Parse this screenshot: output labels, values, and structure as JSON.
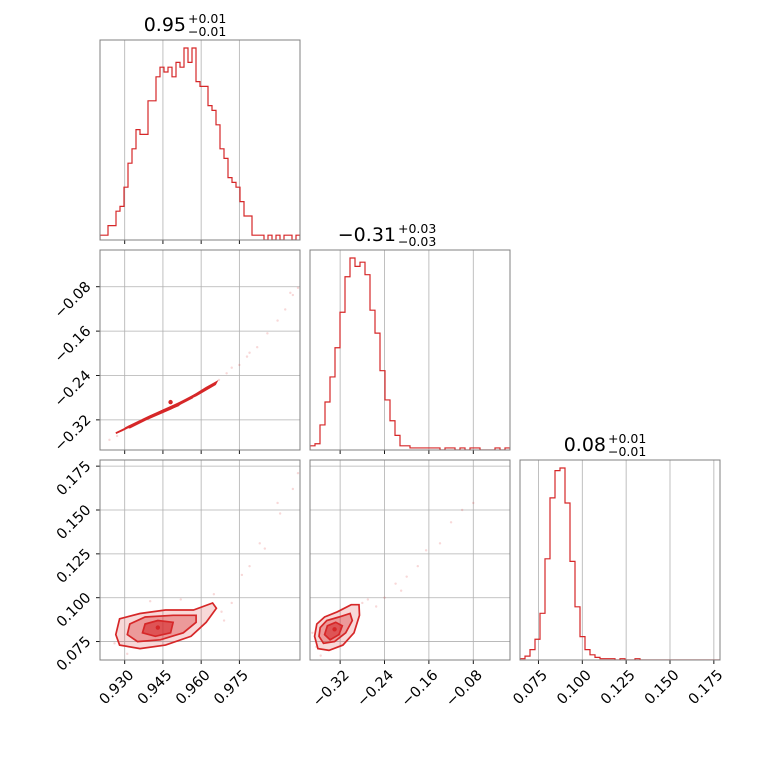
{
  "figure": {
    "color": "#d62728"
  },
  "params": [
    {
      "id": "p0",
      "title": {
        "value": "0.95",
        "plus": "+0.01",
        "minus": "−0.01"
      },
      "range": [
        0.9203,
        0.9988
      ],
      "ticks": [
        0.93,
        0.945,
        0.96,
        0.975
      ],
      "tick_labels": [
        "0.930",
        "0.945",
        "0.960",
        "0.975"
      ]
    },
    {
      "id": "p1",
      "title": {
        "value": "−0.31",
        "plus": "+0.03",
        "minus": "−0.03"
      },
      "range": [
        -0.3743,
        -0.0138
      ],
      "ticks": [
        -0.32,
        -0.24,
        -0.16,
        -0.08
      ],
      "tick_labels": [
        "−0.32",
        "−0.24",
        "−0.16",
        "−0.08"
      ]
    },
    {
      "id": "p2",
      "title": {
        "value": "0.08",
        "plus": "+0.01",
        "minus": "−0.01"
      },
      "range": [
        0.0645,
        0.1785
      ],
      "ticks": [
        0.075,
        0.1,
        0.125,
        0.15,
        0.175
      ],
      "tick_labels": [
        "0.075",
        "0.100",
        "0.125",
        "0.150",
        "0.175"
      ]
    }
  ],
  "chart_data": {
    "type": "corner",
    "parameters": [
      "p0",
      "p1",
      "p2"
    ],
    "histograms": [
      {
        "param": "p0",
        "bin_edges": [
          0.9203,
          0.9988
        ],
        "counts": [
          1,
          1,
          3,
          3,
          6,
          7,
          11,
          16,
          19,
          23,
          22,
          22,
          29,
          29,
          34,
          36,
          35,
          36,
          34,
          37,
          36,
          40,
          37,
          40,
          33,
          32,
          32,
          28,
          27,
          24,
          19,
          17,
          13,
          12,
          11,
          8,
          5,
          5,
          1,
          1,
          1,
          0,
          1,
          0,
          1,
          0,
          1,
          1,
          0,
          1
        ]
      },
      {
        "param": "p1",
        "bin_edges": [
          -0.3743,
          -0.0138
        ],
        "counts": [
          2,
          3,
          12,
          23,
          35,
          49,
          66,
          83,
          92,
          88,
          90,
          84,
          67,
          56,
          38,
          24,
          14,
          7,
          2,
          2,
          1,
          1,
          1,
          1,
          1,
          1,
          0,
          1,
          1,
          0,
          1,
          0,
          1,
          1,
          0,
          0,
          0,
          1,
          0,
          1
        ]
      },
      {
        "param": "p2",
        "bin_edges": [
          0.0645,
          0.1785
        ],
        "counts": [
          1,
          3,
          8,
          16,
          36,
          78,
          125,
          146,
          148,
          121,
          76,
          41,
          18,
          8,
          4,
          2,
          1,
          1,
          1,
          0,
          1,
          0,
          0,
          1,
          0,
          0,
          0,
          0,
          0,
          0,
          0,
          0,
          0,
          0,
          0,
          0,
          0,
          0,
          0,
          0
        ]
      }
    ],
    "pairs": [
      {
        "x": "p0",
        "y": "p1",
        "peak": [
          0.948,
          -0.288
        ],
        "contours": [
          [
            [
              0.9265,
              -0.344
            ],
            [
              0.935,
              -0.325
            ],
            [
              0.945,
              -0.303
            ],
            [
              0.955,
              -0.282
            ],
            [
              0.962,
              -0.262
            ],
            [
              0.966,
              -0.252
            ],
            [
              0.9655,
              -0.256
            ],
            [
              0.958,
              -0.276
            ],
            [
              0.948,
              -0.297
            ],
            [
              0.938,
              -0.318
            ],
            [
              0.929,
              -0.339
            ]
          ],
          [
            [
              0.931,
              -0.333
            ],
            [
              0.94,
              -0.313
            ],
            [
              0.95,
              -0.293
            ],
            [
              0.957,
              -0.276
            ],
            [
              0.9565,
              -0.28
            ],
            [
              0.948,
              -0.3
            ],
            [
              0.939,
              -0.318
            ],
            [
              0.932,
              -0.334
            ]
          ],
          [
            [
              0.937,
              -0.32
            ],
            [
              0.945,
              -0.303
            ],
            [
              0.952,
              -0.29
            ],
            [
              0.951,
              -0.294
            ],
            [
              0.944,
              -0.307
            ],
            [
              0.938,
              -0.319
            ]
          ]
        ],
        "scatter": [
          [
            0.924,
            -0.356
          ],
          [
            0.927,
            -0.349
          ],
          [
            0.963,
            -0.262
          ],
          [
            0.967,
            -0.248
          ],
          [
            0.97,
            -0.236
          ],
          [
            0.975,
            -0.221
          ],
          [
            0.978,
            -0.206
          ],
          [
            0.982,
            -0.189
          ],
          [
            0.986,
            -0.164
          ],
          [
            0.99,
            -0.141
          ],
          [
            0.993,
            -0.121
          ],
          [
            0.996,
            -0.095
          ],
          [
            0.998,
            -0.082
          ],
          [
            0.995,
            -0.091
          ],
          [
            0.979,
            -0.199
          ],
          [
            0.972,
            -0.226
          ]
        ]
      },
      {
        "x": "p0",
        "y": "p2",
        "peak": [
          0.943,
          0.083
        ],
        "contours": [
          [
            [
              0.9265,
              0.079
            ],
            [
              0.928,
              0.073
            ],
            [
              0.936,
              0.071
            ],
            [
              0.946,
              0.073
            ],
            [
              0.956,
              0.078
            ],
            [
              0.962,
              0.086
            ],
            [
              0.966,
              0.094
            ],
            [
              0.9645,
              0.097
            ],
            [
              0.957,
              0.093
            ],
            [
              0.946,
              0.093
            ],
            [
              0.936,
              0.091
            ],
            [
              0.928,
              0.088
            ]
          ],
          [
            [
              0.931,
              0.079
            ],
            [
              0.935,
              0.075
            ],
            [
              0.944,
              0.076
            ],
            [
              0.953,
              0.08
            ],
            [
              0.958,
              0.086
            ],
            [
              0.958,
              0.09
            ],
            [
              0.949,
              0.09
            ],
            [
              0.938,
              0.089
            ],
            [
              0.932,
              0.085
            ]
          ],
          [
            [
              0.937,
              0.08
            ],
            [
              0.942,
              0.078
            ],
            [
              0.948,
              0.08
            ],
            [
              0.949,
              0.086
            ],
            [
              0.943,
              0.087
            ],
            [
              0.938,
              0.085
            ]
          ]
        ],
        "scatter": [
          [
            0.926,
            0.074
          ],
          [
            0.931,
            0.068
          ],
          [
            0.94,
            0.098
          ],
          [
            0.952,
            0.099
          ],
          [
            0.965,
            0.102
          ],
          [
            0.968,
            0.092
          ],
          [
            0.972,
            0.097
          ],
          [
            0.976,
            0.113
          ],
          [
            0.979,
            0.118
          ],
          [
            0.983,
            0.131
          ],
          [
            0.985,
            0.128
          ],
          [
            0.991,
            0.148
          ],
          [
            0.996,
            0.162
          ],
          [
            0.998,
            0.171
          ],
          [
            0.99,
            0.154
          ],
          [
            0.969,
            0.087
          ]
        ]
      },
      {
        "x": "p1",
        "y": "p2",
        "peak": [
          -0.33,
          0.082
        ],
        "contours": [
          [
            [
              -0.366,
              0.078
            ],
            [
              -0.36,
              0.071
            ],
            [
              -0.34,
              0.07
            ],
            [
              -0.315,
              0.073
            ],
            [
              -0.295,
              0.08
            ],
            [
              -0.285,
              0.09
            ],
            [
              -0.286,
              0.096
            ],
            [
              -0.3,
              0.096
            ],
            [
              -0.325,
              0.092
            ],
            [
              -0.348,
              0.089
            ],
            [
              -0.362,
              0.085
            ]
          ],
          [
            [
              -0.358,
              0.078
            ],
            [
              -0.35,
              0.074
            ],
            [
              -0.33,
              0.075
            ],
            [
              -0.31,
              0.08
            ],
            [
              -0.298,
              0.087
            ],
            [
              -0.302,
              0.091
            ],
            [
              -0.322,
              0.089
            ],
            [
              -0.344,
              0.087
            ],
            [
              -0.356,
              0.083
            ]
          ],
          [
            [
              -0.348,
              0.079
            ],
            [
              -0.338,
              0.076
            ],
            [
              -0.322,
              0.079
            ],
            [
              -0.316,
              0.084
            ],
            [
              -0.328,
              0.086
            ],
            [
              -0.343,
              0.084
            ]
          ]
        ],
        "scatter": [
          [
            -0.37,
            0.08
          ],
          [
            -0.363,
            0.072
          ],
          [
            -0.355,
            0.067
          ],
          [
            -0.28,
            0.097
          ],
          [
            -0.27,
            0.099
          ],
          [
            -0.255,
            0.095
          ],
          [
            -0.24,
            0.1
          ],
          [
            -0.22,
            0.108
          ],
          [
            -0.2,
            0.112
          ],
          [
            -0.18,
            0.118
          ],
          [
            -0.165,
            0.127
          ],
          [
            -0.14,
            0.131
          ],
          [
            -0.12,
            0.143
          ],
          [
            -0.1,
            0.15
          ],
          [
            -0.08,
            0.154
          ],
          [
            -0.21,
            0.104
          ]
        ]
      }
    ]
  }
}
